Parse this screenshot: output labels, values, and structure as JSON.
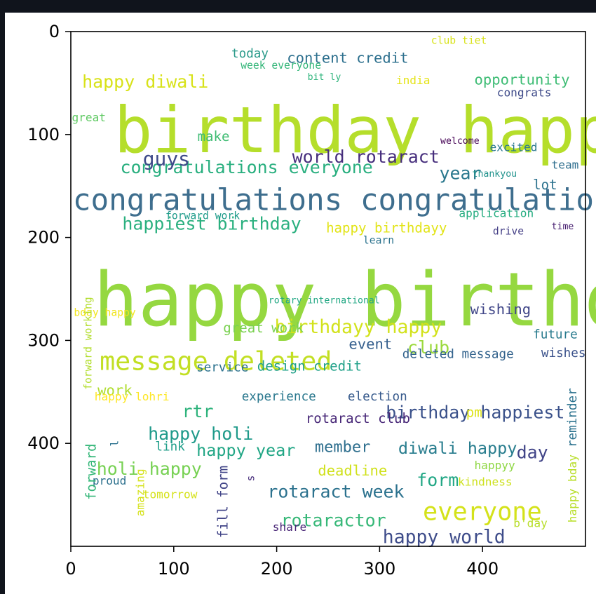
{
  "chart_data": {
    "type": "wordcloud",
    "title": "",
    "xlabel": "",
    "ylabel": "",
    "xlim": [
      0,
      500
    ],
    "ylim": [
      500,
      0
    ],
    "x_ticks": [
      "0",
      "100",
      "200",
      "300",
      "400"
    ],
    "y_ticks": [
      "0",
      "100",
      "200",
      "300",
      "400"
    ],
    "background": "#ffffff",
    "words": [
      {
        "text": "birthday happy",
        "x": 42,
        "y": 72,
        "size": 62,
        "color": "#b5de2b",
        "rotate": 0
      },
      {
        "text": "happy birthday",
        "x": 22,
        "y": 232,
        "size": 72,
        "color": "#95d840",
        "rotate": 0
      },
      {
        "text": "congratulations congratulations",
        "x": 2,
        "y": 152,
        "size": 29,
        "color": "#3e6e8e",
        "rotate": 0
      },
      {
        "text": "message deleted",
        "x": 28,
        "y": 310,
        "size": 25,
        "color": "#c2df23",
        "rotate": 0
      },
      {
        "text": "everyone",
        "x": 342,
        "y": 457,
        "size": 24,
        "color": "#d4e21a",
        "rotate": 0
      },
      {
        "text": "congratulations everyone",
        "x": 48,
        "y": 125,
        "size": 17,
        "color": "#29af7f",
        "rotate": 0
      },
      {
        "text": "happiest birthday",
        "x": 50,
        "y": 180,
        "size": 17,
        "color": "#2ab07f",
        "rotate": 0
      },
      {
        "text": "birthdayy happy",
        "x": 198,
        "y": 280,
        "size": 18,
        "color": "#d2e21b",
        "rotate": 0
      },
      {
        "text": "birthday happiest",
        "x": 306,
        "y": 363,
        "size": 17,
        "color": "#3b528b",
        "rotate": 0
      },
      {
        "text": "rotaract week",
        "x": 191,
        "y": 440,
        "size": 17,
        "color": "#2c728e",
        "rotate": 0
      },
      {
        "text": "rotaractor",
        "x": 204,
        "y": 468,
        "size": 17,
        "color": "#37b878",
        "rotate": 0
      },
      {
        "text": "happy world",
        "x": 303,
        "y": 484,
        "size": 18,
        "color": "#3e4c8a",
        "rotate": 0
      },
      {
        "text": "world rotaract",
        "x": 215,
        "y": 115,
        "size": 17,
        "color": "#472f7d",
        "rotate": 0
      },
      {
        "text": "guys",
        "x": 70,
        "y": 116,
        "size": 19,
        "color": "#3e4a89",
        "rotate": 0
      },
      {
        "text": "happy diwali",
        "x": 11,
        "y": 42,
        "size": 17,
        "color": "#d8e219",
        "rotate": 0
      },
      {
        "text": "content credit",
        "x": 210,
        "y": 20,
        "size": 14,
        "color": "#2d708e",
        "rotate": 0
      },
      {
        "text": "opportunity",
        "x": 392,
        "y": 41,
        "size": 14,
        "color": "#3dbc74",
        "rotate": 0
      },
      {
        "text": "year",
        "x": 358,
        "y": 131,
        "size": 17,
        "color": "#2a788e",
        "rotate": 0
      },
      {
        "text": "club",
        "x": 327,
        "y": 300,
        "size": 17,
        "color": "#9bd93c",
        "rotate": 0
      },
      {
        "text": "happy holi",
        "x": 75,
        "y": 384,
        "size": 17,
        "color": "#1f9a8a",
        "rotate": 0
      },
      {
        "text": "holi happy",
        "x": 25,
        "y": 418,
        "size": 17,
        "color": "#77d153",
        "rotate": 0
      },
      {
        "text": "happy year",
        "x": 122,
        "y": 400,
        "size": 16,
        "color": "#21a685",
        "rotate": 0
      },
      {
        "text": "diwali happy",
        "x": 318,
        "y": 398,
        "size": 16,
        "color": "#287d8e",
        "rotate": 0
      },
      {
        "text": "member",
        "x": 237,
        "y": 398,
        "size": 15,
        "color": "#2e6f8e",
        "rotate": 0
      },
      {
        "text": "day",
        "x": 433,
        "y": 402,
        "size": 17,
        "color": "#414487",
        "rotate": 0
      },
      {
        "text": "form",
        "x": 336,
        "y": 429,
        "size": 17,
        "color": "#22a785",
        "rotate": 0
      },
      {
        "text": "rtr",
        "x": 108,
        "y": 362,
        "size": 17,
        "color": "#2eb37c",
        "rotate": 0
      },
      {
        "text": "work",
        "x": 26,
        "y": 343,
        "size": 14,
        "color": "#b0dd2f",
        "rotate": 0
      },
      {
        "text": "event",
        "x": 270,
        "y": 298,
        "size": 14,
        "color": "#355f8d",
        "rotate": 0
      },
      {
        "text": "deadline",
        "x": 240,
        "y": 421,
        "size": 14,
        "color": "#d0e11c",
        "rotate": 0
      },
      {
        "text": "wishing",
        "x": 388,
        "y": 264,
        "size": 14,
        "color": "#404688",
        "rotate": 0
      },
      {
        "text": "great work",
        "x": 148,
        "y": 283,
        "size": 13,
        "color": "#7ad151",
        "rotate": 0
      },
      {
        "text": "design credit",
        "x": 181,
        "y": 320,
        "size": 13,
        "color": "#1fa088",
        "rotate": 0
      },
      {
        "text": "service",
        "x": 122,
        "y": 322,
        "size": 12,
        "color": "#2c728e",
        "rotate": 0
      },
      {
        "text": "deleted message",
        "x": 322,
        "y": 309,
        "size": 12,
        "color": "#33638d",
        "rotate": 0
      },
      {
        "text": "future",
        "x": 449,
        "y": 290,
        "size": 12,
        "color": "#297b8e",
        "rotate": 0
      },
      {
        "text": "wishes",
        "x": 457,
        "y": 308,
        "size": 12,
        "color": "#3b528b",
        "rotate": 0
      },
      {
        "text": "experience",
        "x": 166,
        "y": 350,
        "size": 12,
        "color": "#2a788e",
        "rotate": 0
      },
      {
        "text": "election",
        "x": 269,
        "y": 350,
        "size": 12,
        "color": "#375a8c",
        "rotate": 0
      },
      {
        "text": "rotaract club",
        "x": 228,
        "y": 371,
        "size": 13,
        "color": "#482878",
        "rotate": 0
      },
      {
        "text": "pm",
        "x": 384,
        "y": 365,
        "size": 13,
        "color": "#dde318",
        "rotate": 0
      },
      {
        "text": "link",
        "x": 82,
        "y": 399,
        "size": 12,
        "color": "#1f9e89",
        "rotate": 0
      },
      {
        "text": "happy lohri",
        "x": 23,
        "y": 350,
        "size": 11,
        "color": "#fde725",
        "rotate": 0
      },
      {
        "text": "happyy",
        "x": 392,
        "y": 417,
        "size": 11,
        "color": "#8fd744",
        "rotate": 0
      },
      {
        "text": "kindness",
        "x": 376,
        "y": 433,
        "size": 11,
        "color": "#cde11d",
        "rotate": 0
      },
      {
        "text": "proud",
        "x": 21,
        "y": 432,
        "size": 11,
        "color": "#2d718e",
        "rotate": 0
      },
      {
        "text": "tomorrow",
        "x": 70,
        "y": 445,
        "size": 11,
        "color": "#d5e21a",
        "rotate": 0
      },
      {
        "text": "share",
        "x": 196,
        "y": 477,
        "size": 11,
        "color": "#482576",
        "rotate": 0
      },
      {
        "text": "b'day",
        "x": 430,
        "y": 473,
        "size": 11,
        "color": "#b8de29",
        "rotate": 0
      },
      {
        "text": "happy birthdayy",
        "x": 248,
        "y": 186,
        "size": 13,
        "color": "#e2e418",
        "rotate": 0
      },
      {
        "text": "learn",
        "x": 284,
        "y": 199,
        "size": 10,
        "color": "#2c738e",
        "rotate": 0
      },
      {
        "text": "forward work",
        "x": 92,
        "y": 175,
        "size": 10,
        "color": "#1e9b8a",
        "rotate": 0
      },
      {
        "text": "application",
        "x": 377,
        "y": 172,
        "size": 11,
        "color": "#26ad81",
        "rotate": 0
      },
      {
        "text": "drive",
        "x": 410,
        "y": 190,
        "size": 10,
        "color": "#433e85",
        "rotate": 0
      },
      {
        "text": "time",
        "x": 467,
        "y": 186,
        "size": 9,
        "color": "#482071",
        "rotate": 0
      },
      {
        "text": "lot",
        "x": 449,
        "y": 144,
        "size": 13,
        "color": "#2c728e",
        "rotate": 0
      },
      {
        "text": "thankyou",
        "x": 390,
        "y": 135,
        "size": 9,
        "color": "#20928c",
        "rotate": 0
      },
      {
        "text": "team",
        "x": 467,
        "y": 125,
        "size": 11,
        "color": "#2e6e8e",
        "rotate": 0
      },
      {
        "text": "welcome",
        "x": 359,
        "y": 103,
        "size": 9,
        "color": "#440154",
        "rotate": 0
      },
      {
        "text": "excited",
        "x": 407,
        "y": 108,
        "size": 11,
        "color": "#2a788e",
        "rotate": 0
      },
      {
        "text": "make",
        "x": 123,
        "y": 97,
        "size": 13,
        "color": "#3fbc73",
        "rotate": 0
      },
      {
        "text": "great",
        "x": 1,
        "y": 79,
        "size": 11,
        "color": "#5ec962",
        "rotate": 0
      },
      {
        "text": "today",
        "x": 156,
        "y": 17,
        "size": 12,
        "color": "#2a9a8a",
        "rotate": 0
      },
      {
        "text": "week everyone",
        "x": 165,
        "y": 29,
        "size": 10,
        "color": "#34b679",
        "rotate": 0
      },
      {
        "text": "bit ly",
        "x": 230,
        "y": 41,
        "size": 9,
        "color": "#2fb47c",
        "rotate": 0
      },
      {
        "text": "india",
        "x": 316,
        "y": 43,
        "size": 11,
        "color": "#e5e419",
        "rotate": 0
      },
      {
        "text": "club tiet",
        "x": 350,
        "y": 5,
        "size": 10,
        "color": "#d8e219",
        "rotate": 0
      },
      {
        "text": "congrats",
        "x": 414,
        "y": 55,
        "size": 11,
        "color": "#3e4a89",
        "rotate": 0
      },
      {
        "text": "rotary international",
        "x": 192,
        "y": 258,
        "size": 9,
        "color": "#23a884",
        "rotate": 0
      },
      {
        "text": "bday happy",
        "x": 3,
        "y": 269,
        "size": 10,
        "color": "#f1e51d",
        "rotate": 0
      },
      {
        "text": "forward working",
        "x": 13,
        "y": 348,
        "size": 10,
        "color": "#b2dd2d",
        "rotate": -90
      },
      {
        "text": "forward",
        "x": 15,
        "y": 455,
        "size": 13,
        "color": "#35b779",
        "rotate": -90
      },
      {
        "text": "amazing",
        "x": 63,
        "y": 471,
        "size": 11,
        "color": "#d5e21a",
        "rotate": -90
      },
      {
        "text": "fill form",
        "x": 143,
        "y": 492,
        "size": 13,
        "color": "#414487",
        "rotate": -90
      },
      {
        "text": "s",
        "x": 171,
        "y": 437,
        "size": 10,
        "color": "#472d7b",
        "rotate": -90
      },
      {
        "text": "l",
        "x": 39,
        "y": 403,
        "size": 10,
        "color": "#2c728e",
        "rotate": -90
      },
      {
        "text": "reminder",
        "x": 483,
        "y": 404,
        "size": 12,
        "color": "#2c728e",
        "rotate": -90
      },
      {
        "text": "happy bday",
        "x": 483,
        "y": 477,
        "size": 11,
        "color": "#b8de29",
        "rotate": -90
      }
    ]
  }
}
